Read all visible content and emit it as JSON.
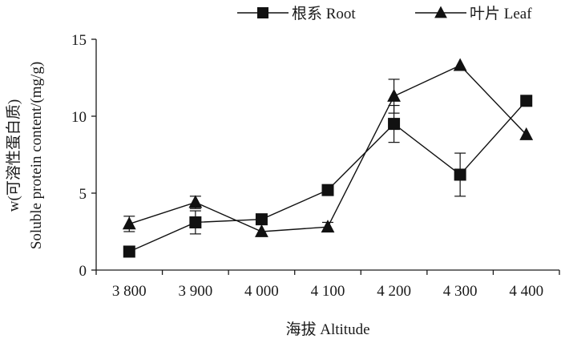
{
  "chart_data": {
    "type": "line",
    "xlabel": "海拔 Altitude",
    "ylabel_line1": "w(可溶性蛋白质)",
    "ylabel_line2": "Soluble protein content/(mg/g)",
    "categories": [
      "3 800",
      "3 900",
      "4 000",
      "4 100",
      "4 200",
      "4 300",
      "4 400"
    ],
    "yticks": [
      0,
      5,
      10,
      15
    ],
    "ylim": [
      0,
      15
    ],
    "grid": false,
    "legend_position": "top-right",
    "series": [
      {
        "name": "根系 Root",
        "marker": "square",
        "color": "#111111",
        "values": [
          1.2,
          3.1,
          3.3,
          5.2,
          9.5,
          6.2,
          11.0
        ],
        "errors": [
          0.0,
          0.75,
          0.3,
          0.0,
          1.2,
          1.4,
          0.0
        ]
      },
      {
        "name": "叶片 Leaf",
        "marker": "triangle",
        "color": "#111111",
        "values": [
          3.0,
          4.4,
          2.5,
          2.8,
          11.3,
          13.3,
          8.8
        ],
        "errors": [
          0.5,
          0.4,
          0.0,
          0.3,
          1.1,
          0.0,
          0.0
        ]
      }
    ]
  }
}
